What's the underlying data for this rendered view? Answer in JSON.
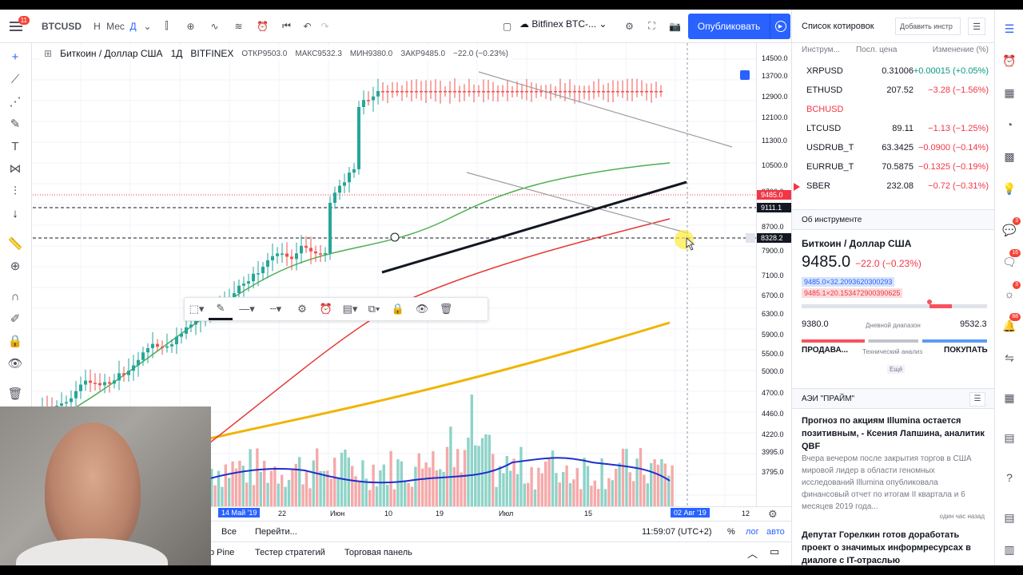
{
  "topbar": {
    "badge": "11",
    "symbol": "BTCUSD",
    "interval_h": "Н",
    "interval_m": "Мес",
    "interval_d": "Д",
    "exchange": "Bitfinex BTC-...",
    "publish": "Опубликовать"
  },
  "legend": {
    "title": "Биткоин / Доллар США",
    "interval": "1Д",
    "exchange": "BITFINEX",
    "open": "ОТКР9503.0",
    "high": "МАКС9532.3",
    "low": "МИН9380.0",
    "close": "ЗАКР9485.0",
    "change": "−22.0 (−0.23%)"
  },
  "price_scale": {
    "labels": [
      "14500.0",
      "13700.0",
      "12900.0",
      "12100.0",
      "11300.0",
      "10500.0",
      "9700.0",
      "8700.0",
      "7900.0",
      "7100.0",
      "6700.0",
      "6300.0",
      "5900.0",
      "5500.0",
      "5000.0",
      "4700.0",
      "4460.0",
      "4220.0",
      "3995.0",
      "3795.0"
    ],
    "current": "9485.0",
    "line1": "9111.1",
    "line2": "8328.2",
    "colors": {
      "current": "#f23645",
      "line": "#131722"
    }
  },
  "time_scale": {
    "labels": [
      "14 Май '19",
      "22",
      "Июн",
      "10",
      "19",
      "Июл",
      "15",
      "02 Авг '19",
      "12"
    ]
  },
  "tfbar": {
    "all": "Все",
    "goto": "Перейти...",
    "time": "11:59:07 (UTC+2)",
    "pct": "%",
    "log": "лог",
    "auto": "авто"
  },
  "bottombar": {
    "pine": "p Pine",
    "tester": "Тестер стратегий",
    "panel": "Торговая панель"
  },
  "watchlist": {
    "title": "Список котировок",
    "add": "Добавить инстр",
    "col_sym": "Инструм...",
    "col_last": "Посл. цена",
    "col_chg": "Изменение (%)",
    "rows": [
      {
        "sym": "XRPUSD",
        "last": "0.31006",
        "chg": "+0.00015 (+0.05%)",
        "dir": "up"
      },
      {
        "sym": "ETHUSD",
        "last": "207.52",
        "chg": "−3.28 (−1.56%)",
        "dir": "down"
      },
      {
        "sym": "BCHUSD",
        "last": "",
        "chg": "",
        "dir": "down"
      },
      {
        "sym": "LTCUSD",
        "last": "89.11",
        "chg": "−1.13 (−1.25%)",
        "dir": "down"
      },
      {
        "sym": "USDRUB_TC",
        "last": "63.3425",
        "chg": "−0.0900 (−0.14%)",
        "dir": "down"
      },
      {
        "sym": "EURRUB_TC",
        "last": "70.5875",
        "chg": "−0.1325 (−0.19%)",
        "dir": "down"
      },
      {
        "sym": "SBER",
        "last": "232.08",
        "chg": "−0.72 (−0.31%)",
        "dir": "down"
      }
    ]
  },
  "about": {
    "head": "Об инструменте",
    "name": "Биткоин / Доллар США",
    "price": "9485.0",
    "change": "−22.0 (−0.23%)",
    "ask": "9485.0×32.2093620300293",
    "bid": "9485.1×20.153472900390625",
    "low": "9380.0",
    "high": "9532.3",
    "range_label": "Дневной диапазон",
    "range_fraction": 0.69,
    "sell": "ПРОДАВА...",
    "tech": "Технический анализ",
    "buy": "ПОКУПАТЬ",
    "more": "Ещё"
  },
  "news": {
    "head": "АЭИ \"ПРАЙМ\"",
    "title1": "Прогноз по акциям Illumina остается позитивным, - Ксения Лапшина, аналитик QBF",
    "body1": "Вчера вечером после закрытия торгов в США мировой лидер в области геномных исследований Illumina опубликовала финансовый отчет по итогам II квартала и 6 месяцев 2019 года...",
    "time1": "один час назад",
    "title2": "Депутат Горелкин готов доработать проект о значимых информресурсах в диалоге с IT-отраслью"
  },
  "rbar_badges": [
    "3",
    "16",
    "3",
    "88"
  ]
}
